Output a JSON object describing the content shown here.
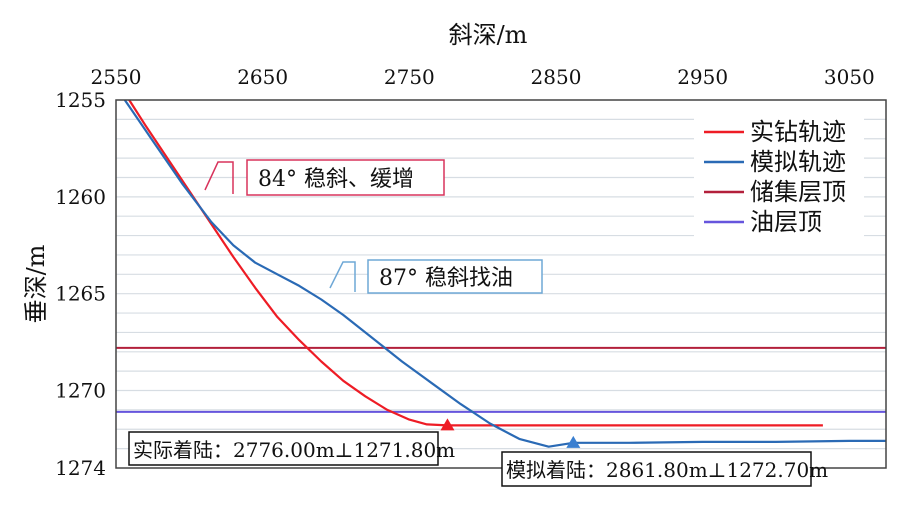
{
  "chart_data": {
    "type": "line",
    "xlabel": "斜深/m",
    "ylabel": "垂深/m",
    "xlim": [
      2550,
      3075
    ],
    "ylim": [
      1274,
      1255
    ],
    "y_inverted": true,
    "x_axis_position": "top",
    "x_ticks": [
      2550,
      2650,
      2750,
      2850,
      2950,
      3050
    ],
    "y_ticks": [
      1255,
      1260,
      1265,
      1270,
      1274
    ],
    "grid": "horizontal",
    "legend_position": "top-right",
    "series": [
      {
        "name": "实钻轨迹",
        "color": "#ee1c25",
        "x": [
          2559,
          2570,
          2585,
          2600,
          2615,
          2630,
          2645,
          2660,
          2675,
          2690,
          2705,
          2720,
          2735,
          2750,
          2762,
          2776,
          2790,
          2810,
          2850,
          2900,
          2950,
          3000,
          3032
        ],
        "y": [
          1255,
          1256.3,
          1258.0,
          1259.7,
          1261.4,
          1263.1,
          1264.7,
          1266.2,
          1267.4,
          1268.5,
          1269.5,
          1270.3,
          1271.0,
          1271.5,
          1271.75,
          1271.8,
          1271.8,
          1271.8,
          1271.8,
          1271.8,
          1271.8,
          1271.8,
          1271.8
        ]
      },
      {
        "name": "模拟轨迹",
        "color": "#2a6ab5",
        "x": [
          2556,
          2575,
          2595,
          2615,
          2630,
          2645,
          2660,
          2675,
          2690,
          2705,
          2725,
          2745,
          2765,
          2785,
          2805,
          2825,
          2845,
          2861.8,
          2900,
          2950,
          3000,
          3050,
          3075
        ],
        "y": [
          1255,
          1257.1,
          1259.3,
          1261.3,
          1262.5,
          1263.4,
          1264.0,
          1264.6,
          1265.3,
          1266.1,
          1267.3,
          1268.5,
          1269.6,
          1270.7,
          1271.7,
          1272.5,
          1272.9,
          1272.7,
          1272.7,
          1272.65,
          1272.65,
          1272.6,
          1272.6
        ]
      },
      {
        "name": "储集层顶",
        "color": "#b3203b",
        "type": "hline",
        "y": 1267.8
      },
      {
        "name": "油层顶",
        "color": "#6655dd",
        "type": "hline",
        "y": 1271.1
      }
    ],
    "annotations": [
      {
        "text": "84° 稳斜、缓增",
        "color": "#d8335c"
      },
      {
        "text": "87° 稳斜找油",
        "color": "#6fa8d6"
      }
    ],
    "landing_points": [
      {
        "series": "实钻轨迹",
        "label": "实际着陆：2776.00m⊥1271.80m",
        "x": 2776.0,
        "y": 1271.8,
        "color": "#ee1c25"
      },
      {
        "series": "模拟轨迹",
        "label": "模拟着陆：2861.80m⊥1272.70m",
        "x": 2861.8,
        "y": 1272.7,
        "color": "#3a7fd0"
      }
    ]
  }
}
